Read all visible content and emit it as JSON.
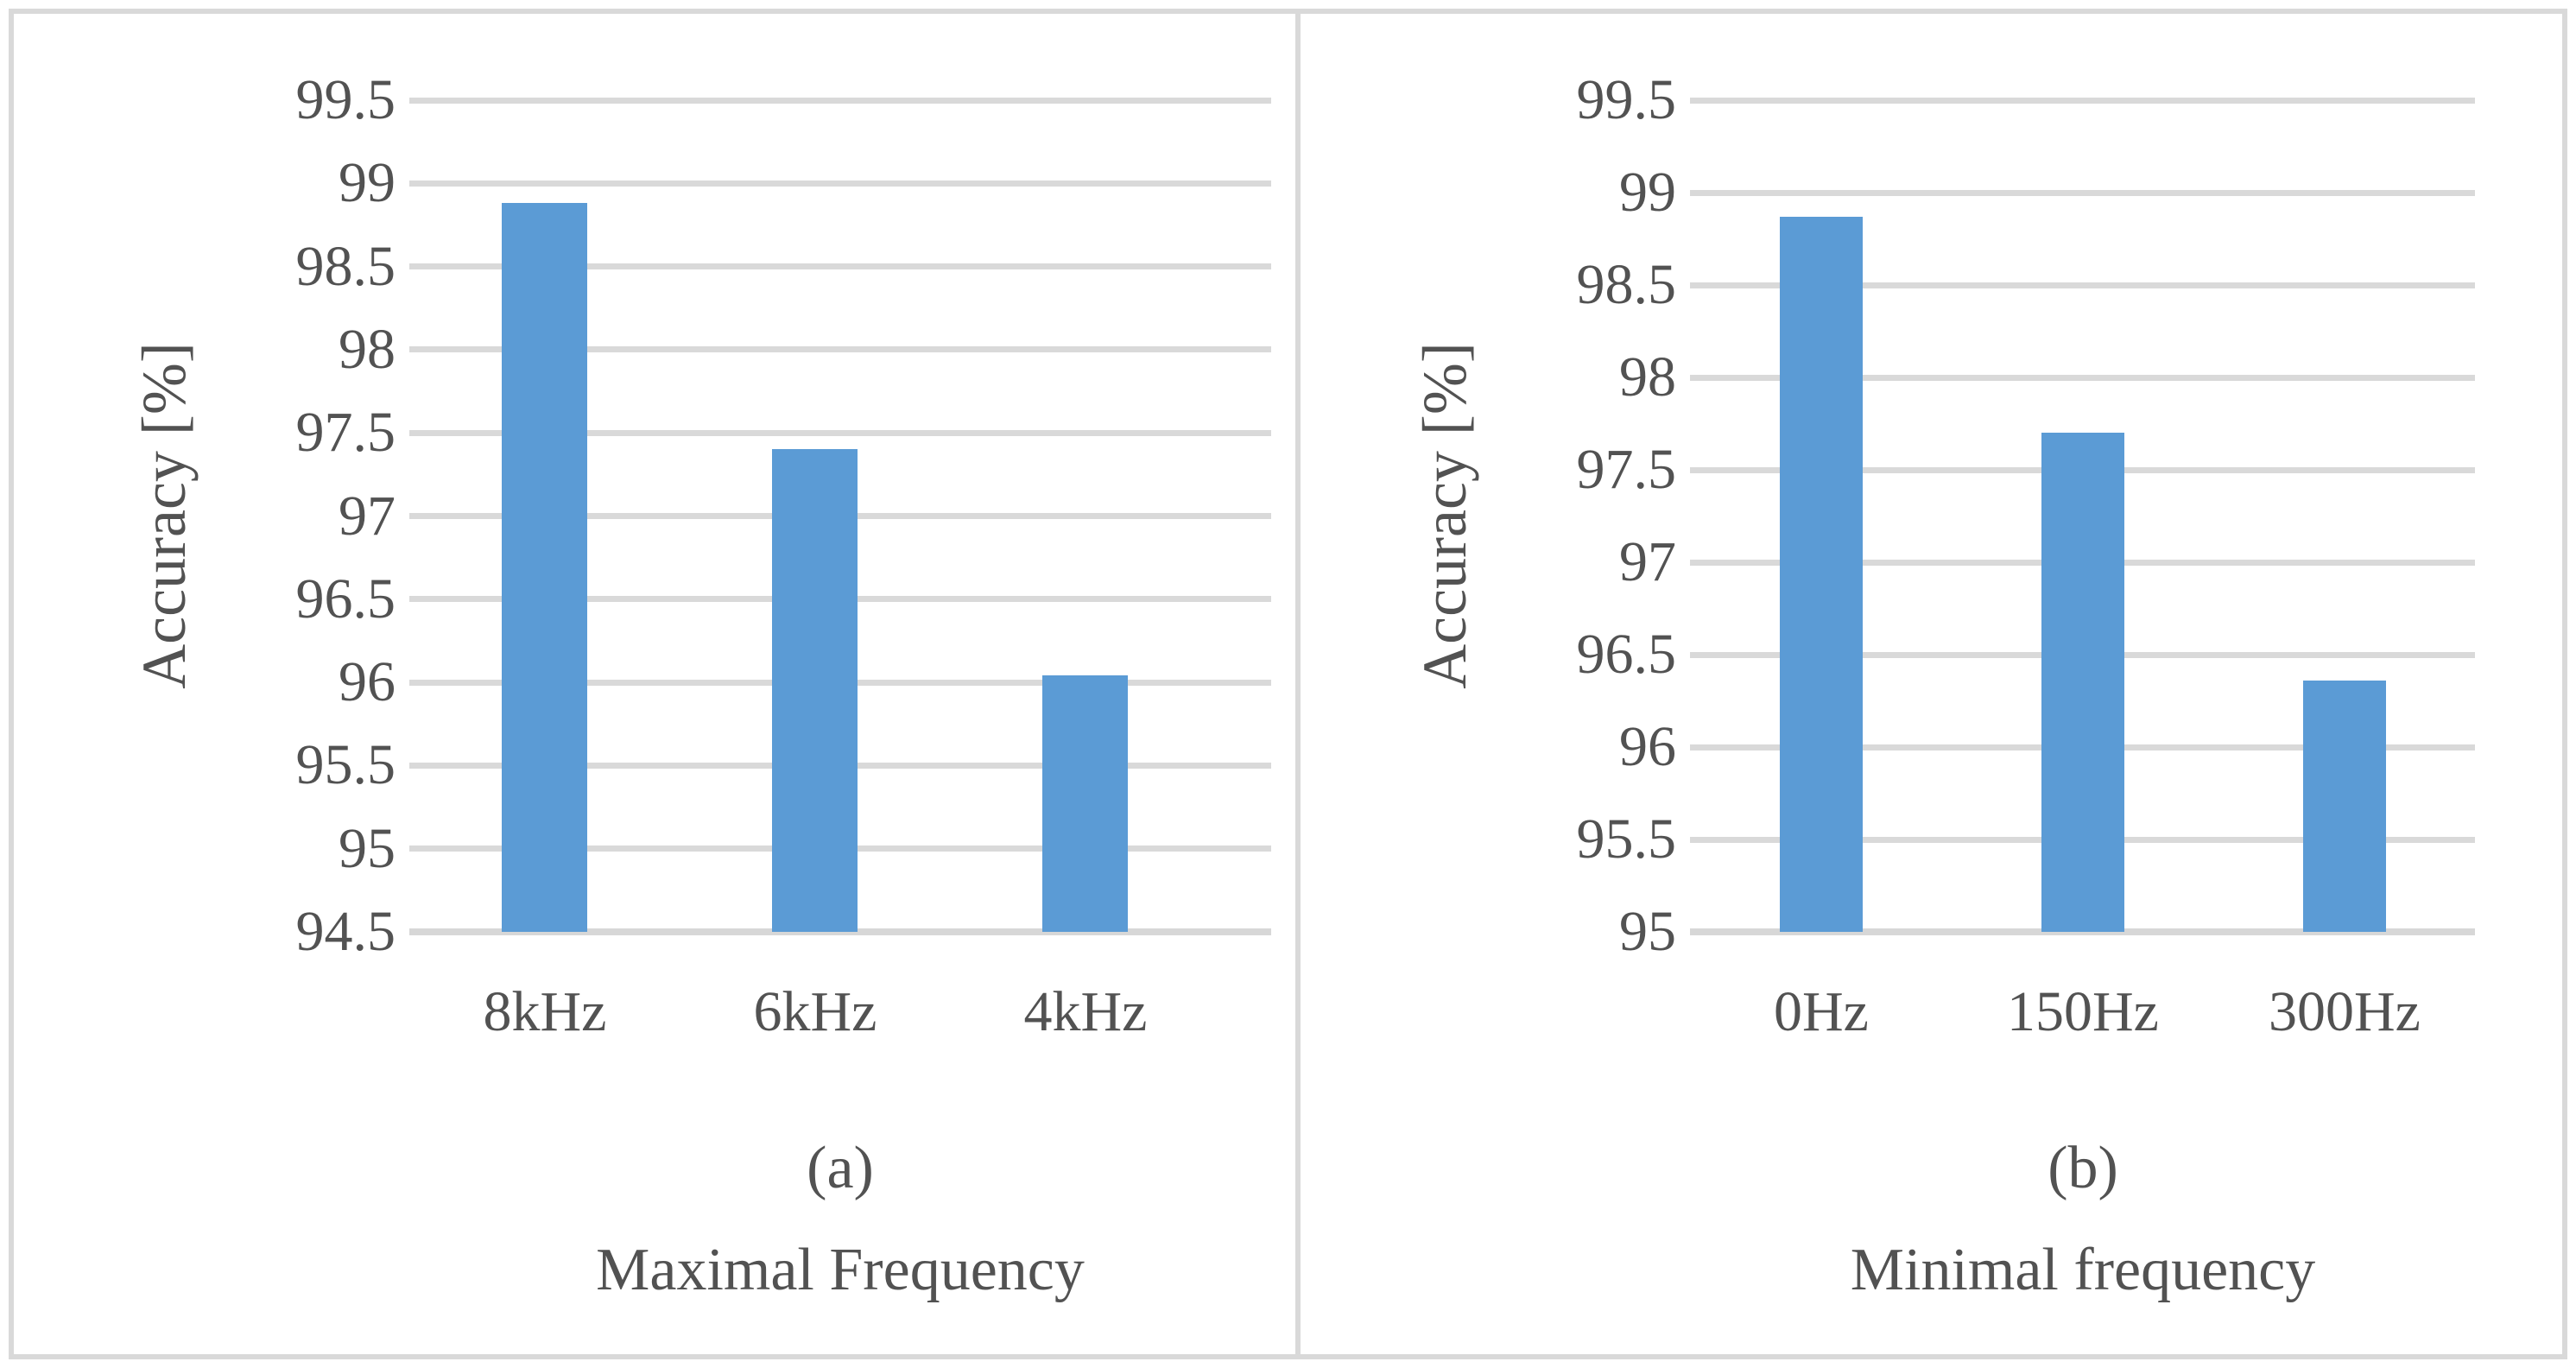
{
  "figure": {
    "background": "#ffffff",
    "border_color": "#d9d9d9",
    "gridline_color": "#d9d9d9",
    "text_color": "#525252",
    "panel_count": 2
  },
  "chart_data": [
    {
      "type": "bar",
      "caption": "(a)",
      "xlabel": "Maximal Frequency",
      "ylabel": "Accuracy [%]",
      "categories": [
        "8kHz",
        "6kHz",
        "4kHz"
      ],
      "values": [
        98.88,
        97.4,
        96.04
      ],
      "ylim": [
        94.5,
        99.5
      ],
      "ytick_step": 0.5,
      "grid": true,
      "legend": "none",
      "bar_color": "#5B9BD5"
    },
    {
      "type": "bar",
      "caption": "(b)",
      "xlabel": "Minimal frequency",
      "ylabel": "Accuracy [%]",
      "categories": [
        "0Hz",
        "150Hz",
        "300Hz"
      ],
      "values": [
        98.87,
        97.7,
        96.36
      ],
      "ylim": [
        95,
        99.5
      ],
      "ytick_step": 0.5,
      "grid": true,
      "legend": "none",
      "bar_color": "#5B9BD5"
    }
  ]
}
